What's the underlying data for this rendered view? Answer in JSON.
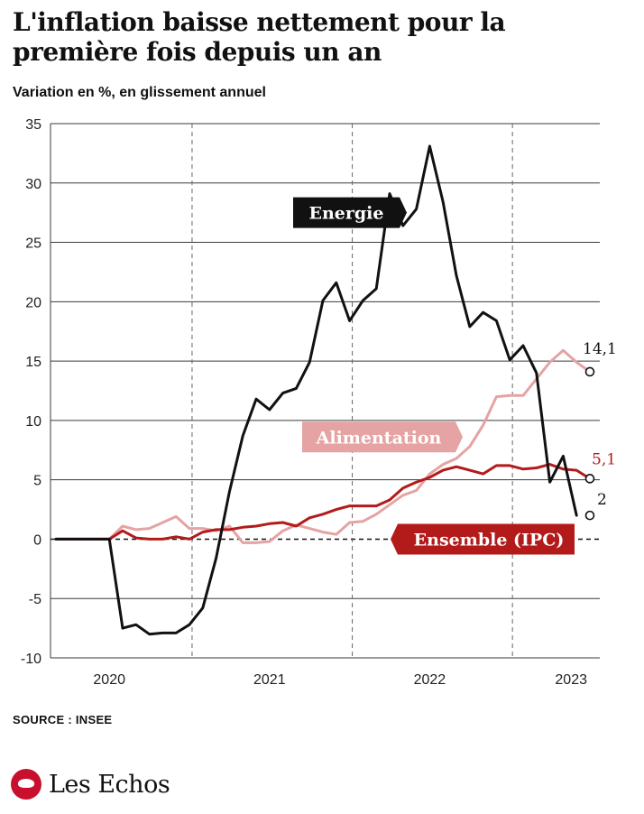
{
  "title": "L'inflation baisse nettement pour la première fois depuis un an",
  "subtitle": "Variation en %, en glissement annuel",
  "source": "SOURCE : INSEE",
  "brand": "Les Echos",
  "brand_icon": "les-echos-bird-logo",
  "colors": {
    "energie": "#111111",
    "alimentation": "#e5a3a3",
    "ensemble": "#b31b1b",
    "grid": "#555555"
  },
  "chart_data": {
    "type": "line",
    "title": "L'inflation baisse nettement pour la première fois depuis un an",
    "ylabel": "Variation en %, en glissement annuel",
    "ylim": [
      -10,
      35
    ],
    "yticks": [
      35,
      30,
      25,
      20,
      15,
      10,
      5,
      0,
      -5,
      -10
    ],
    "ytick_labels": [
      "35",
      "30",
      "25",
      "20",
      "15",
      "10",
      "5",
      "0",
      "-5",
      "-10"
    ],
    "xticks": [
      "2020",
      "2021",
      "2022",
      "2023"
    ],
    "grid": true,
    "x_start": "2019-10",
    "x_end": "2023-04",
    "series": [
      {
        "name": "Energie",
        "key": "energie",
        "points": [
          [
            "2019-10",
            0.0
          ],
          [
            "2019-12",
            0.0
          ],
          [
            "2020-01",
            0.0
          ],
          [
            "2020-02",
            0.0
          ],
          [
            "2020-03",
            -7.5
          ],
          [
            "2020-04",
            -7.2
          ],
          [
            "2020-05",
            -8.0
          ],
          [
            "2020-06",
            -7.9
          ],
          [
            "2020-07",
            -7.9
          ],
          [
            "2020-08",
            -7.2
          ],
          [
            "2020-09",
            -5.8
          ],
          [
            "2020-10",
            -1.6
          ],
          [
            "2020-11",
            4.0
          ],
          [
            "2020-12",
            8.7
          ],
          [
            "2021-01",
            11.8
          ],
          [
            "2021-02",
            10.9
          ],
          [
            "2021-03",
            12.3
          ],
          [
            "2021-04",
            12.7
          ],
          [
            "2021-05",
            14.9
          ],
          [
            "2021-06",
            20.1
          ],
          [
            "2021-07",
            21.6
          ],
          [
            "2021-08",
            18.4
          ],
          [
            "2021-09",
            20.1
          ],
          [
            "2021-10",
            21.1
          ],
          [
            "2021-11",
            29.1
          ],
          [
            "2021-12",
            26.4
          ],
          [
            "2022-01",
            27.8
          ],
          [
            "2022-02",
            33.1
          ],
          [
            "2022-03",
            28.4
          ],
          [
            "2022-04",
            22.2
          ],
          [
            "2022-05",
            17.9
          ],
          [
            "2022-06",
            19.1
          ],
          [
            "2022-07",
            18.4
          ],
          [
            "2022-08",
            15.1
          ],
          [
            "2022-09",
            16.3
          ],
          [
            "2022-10",
            14.0
          ],
          [
            "2022-11",
            4.8
          ],
          [
            "2022-12",
            7.0
          ],
          [
            "2023-01",
            2.0
          ]
        ]
      },
      {
        "name": "Alimentation",
        "key": "alimentation",
        "points": [
          [
            "2019-10",
            0.0
          ],
          [
            "2019-12",
            0.0
          ],
          [
            "2020-01",
            0.0
          ],
          [
            "2020-02",
            0.0
          ],
          [
            "2020-03",
            1.1
          ],
          [
            "2020-04",
            0.8
          ],
          [
            "2020-05",
            0.9
          ],
          [
            "2020-06",
            1.4
          ],
          [
            "2020-07",
            1.9
          ],
          [
            "2020-08",
            0.9
          ],
          [
            "2020-09",
            0.9
          ],
          [
            "2020-10",
            0.7
          ],
          [
            "2020-11",
            1.1
          ],
          [
            "2020-12",
            -0.3
          ],
          [
            "2021-01",
            -0.3
          ],
          [
            "2021-02",
            -0.2
          ],
          [
            "2021-03",
            0.7
          ],
          [
            "2021-04",
            1.2
          ],
          [
            "2021-05",
            0.9
          ],
          [
            "2021-06",
            0.6
          ],
          [
            "2021-07",
            0.4
          ],
          [
            "2021-08",
            1.4
          ],
          [
            "2021-09",
            1.5
          ],
          [
            "2021-10",
            2.1
          ],
          [
            "2021-11",
            2.9
          ],
          [
            "2021-12",
            3.7
          ],
          [
            "2022-01",
            4.1
          ],
          [
            "2022-02",
            5.5
          ],
          [
            "2022-03",
            6.3
          ],
          [
            "2022-04",
            6.8
          ],
          [
            "2022-05",
            7.8
          ],
          [
            "2022-06",
            9.6
          ],
          [
            "2022-07",
            12.0
          ],
          [
            "2022-08",
            12.1
          ],
          [
            "2022-09",
            12.1
          ],
          [
            "2022-10",
            13.5
          ],
          [
            "2022-11",
            14.9
          ],
          [
            "2022-12",
            15.9
          ],
          [
            "2023-01",
            14.9
          ],
          [
            "2023-02",
            14.1
          ]
        ]
      },
      {
        "name": "Ensemble (IPC)",
        "key": "ensemble",
        "points": [
          [
            "2019-10",
            0.0
          ],
          [
            "2019-12",
            0.0
          ],
          [
            "2020-01",
            0.0
          ],
          [
            "2020-02",
            0.0
          ],
          [
            "2020-03",
            0.7
          ],
          [
            "2020-04",
            0.1
          ],
          [
            "2020-05",
            0.0
          ],
          [
            "2020-06",
            0.0
          ],
          [
            "2020-07",
            0.2
          ],
          [
            "2020-08",
            0.0
          ],
          [
            "2020-09",
            0.6
          ],
          [
            "2020-10",
            0.8
          ],
          [
            "2020-11",
            0.8
          ],
          [
            "2020-12",
            1.0
          ],
          [
            "2021-01",
            1.1
          ],
          [
            "2021-02",
            1.3
          ],
          [
            "2021-03",
            1.4
          ],
          [
            "2021-04",
            1.1
          ],
          [
            "2021-05",
            1.8
          ],
          [
            "2021-06",
            2.1
          ],
          [
            "2021-07",
            2.5
          ],
          [
            "2021-08",
            2.8
          ],
          [
            "2021-09",
            2.8
          ],
          [
            "2021-10",
            2.8
          ],
          [
            "2021-11",
            3.3
          ],
          [
            "2021-12",
            4.3
          ],
          [
            "2022-01",
            4.8
          ],
          [
            "2022-02",
            5.2
          ],
          [
            "2022-03",
            5.8
          ],
          [
            "2022-04",
            6.1
          ],
          [
            "2022-05",
            5.8
          ],
          [
            "2022-06",
            5.5
          ],
          [
            "2022-07",
            6.2
          ],
          [
            "2022-08",
            6.2
          ],
          [
            "2022-09",
            5.9
          ],
          [
            "2022-10",
            6.0
          ],
          [
            "2022-11",
            6.3
          ],
          [
            "2022-12",
            5.9
          ],
          [
            "2023-01",
            5.8
          ],
          [
            "2023-02",
            5.1
          ]
        ]
      }
    ],
    "end_labels": [
      {
        "series": "alimentation",
        "text": "14,1"
      },
      {
        "series": "ensemble",
        "text": "5,1"
      },
      {
        "series": "energie",
        "text": "2"
      }
    ],
    "series_labels": [
      {
        "series": "energie",
        "text": "Energie",
        "at": [
          "2021-06",
          27.5
        ]
      },
      {
        "series": "alimentation",
        "text": "Alimentation",
        "at": [
          "2021-04",
          8.6
        ]
      },
      {
        "series": "ensemble",
        "text": "Ensemble (IPC)",
        "at": [
          "2022-06",
          0.0
        ]
      }
    ]
  }
}
